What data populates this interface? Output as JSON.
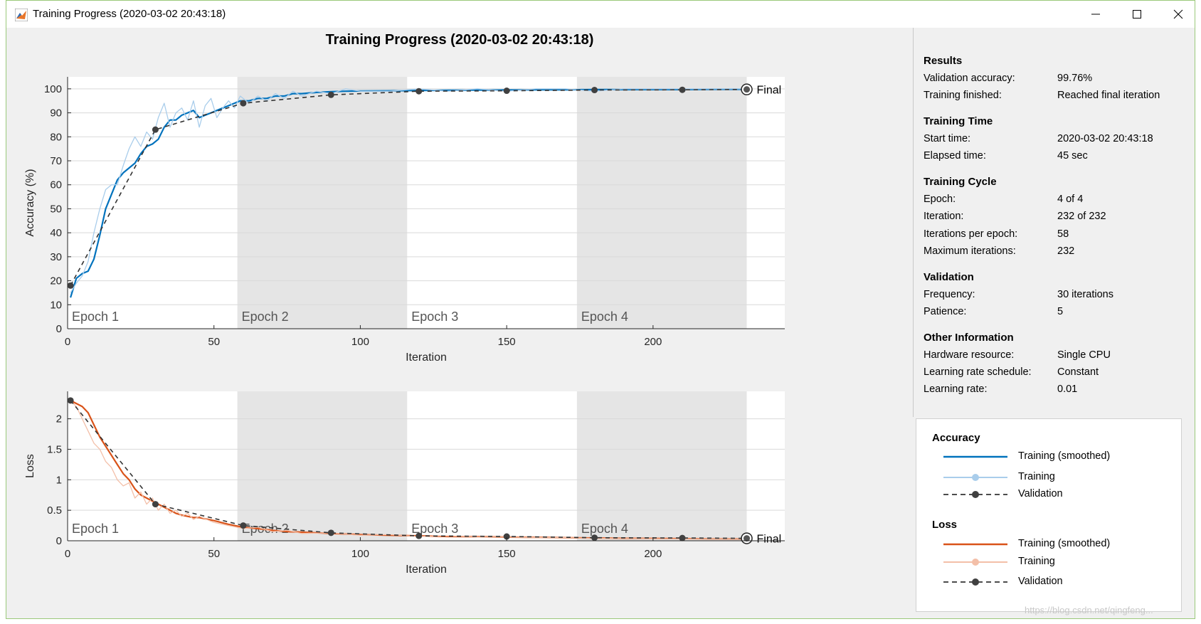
{
  "window": {
    "title": "Training Progress (2020-03-02 20:43:18)"
  },
  "plot": {
    "title": "Training Progress (2020-03-02 20:43:18)",
    "epoch_labels": [
      "Epoch 1",
      "Epoch 2",
      "Epoch 3",
      "Epoch 4"
    ],
    "final_label": "Final"
  },
  "colors": {
    "accuracy_smoothed": "#0072bd",
    "accuracy_raw": "#a9cdeb",
    "loss_smoothed": "#d95319",
    "loss_raw": "#f3bfa8",
    "validation": "#333333",
    "epoch_shade": "#e5e5e5"
  },
  "chart_data": [
    {
      "type": "line",
      "xlabel": "Iteration",
      "ylabel": "Accuracy (%)",
      "xlim": [
        0,
        245
      ],
      "ylim": [
        0,
        105
      ],
      "xticks": [
        0,
        50,
        100,
        150,
        200
      ],
      "yticks": [
        0,
        10,
        20,
        30,
        40,
        50,
        60,
        70,
        80,
        90,
        100
      ],
      "grid": true,
      "epoch_boundaries": [
        0,
        58,
        116,
        174,
        232
      ],
      "series": [
        {
          "name": "Training (smoothed)",
          "style": "solid",
          "x": [
            1,
            3,
            5,
            7,
            9,
            11,
            13,
            15,
            17,
            19,
            21,
            23,
            25,
            27,
            29,
            31,
            33,
            35,
            37,
            39,
            41,
            43,
            45,
            47,
            49,
            51,
            53,
            55,
            57,
            59,
            62,
            65,
            68,
            71,
            74,
            77,
            80,
            85,
            90,
            95,
            100,
            110,
            120,
            130,
            140,
            150,
            160,
            170,
            180,
            190,
            200,
            210,
            220,
            232
          ],
          "y": [
            13,
            21,
            23,
            24,
            29,
            39,
            50,
            56,
            62,
            65,
            67,
            69,
            73,
            76,
            77,
            79,
            84,
            87,
            87,
            89,
            90,
            91,
            88,
            89,
            90,
            91,
            92,
            93,
            94,
            95,
            95,
            96,
            96,
            97,
            97,
            98,
            98,
            98.5,
            98.8,
            99,
            99.1,
            99.2,
            99.3,
            99.4,
            99.5,
            99.5,
            99.6,
            99.6,
            99.7,
            99.7,
            99.7,
            99.7,
            99.8,
            99.8
          ]
        },
        {
          "name": "Training",
          "style": "solid-thin",
          "x": [
            1,
            3,
            5,
            7,
            9,
            11,
            13,
            15,
            17,
            19,
            21,
            23,
            25,
            27,
            29,
            31,
            33,
            35,
            37,
            39,
            41,
            43,
            45,
            47,
            49,
            51,
            53,
            55,
            57,
            59,
            62,
            65,
            68,
            71,
            74,
            77,
            80,
            85,
            90,
            95,
            100,
            110,
            120,
            130,
            140,
            150,
            160,
            170,
            180,
            190,
            200,
            210,
            220,
            232
          ],
          "y": [
            15,
            19,
            22,
            28,
            40,
            50,
            58,
            60,
            60,
            68,
            75,
            80,
            76,
            82,
            79,
            88,
            94,
            84,
            90,
            92,
            87,
            95,
            84,
            93,
            96,
            88,
            92,
            95,
            92,
            97,
            94,
            97,
            95,
            98,
            96,
            99,
            97,
            99,
            98,
            100,
            99,
            99,
            100,
            99,
            100,
            99,
            100,
            100,
            99,
            100,
            100,
            100,
            100,
            100
          ]
        },
        {
          "name": "Validation",
          "style": "dashed",
          "x": [
            1,
            30,
            60,
            90,
            120,
            150,
            180,
            210,
            232
          ],
          "y": [
            18,
            83,
            94,
            97.5,
            99,
            99.2,
            99.5,
            99.6,
            99.76
          ]
        }
      ]
    },
    {
      "type": "line",
      "xlabel": "Iteration",
      "ylabel": "Loss",
      "xlim": [
        0,
        245
      ],
      "ylim": [
        0,
        2.45
      ],
      "xticks": [
        0,
        50,
        100,
        150,
        200
      ],
      "yticks": [
        0,
        0.5,
        1,
        1.5,
        2
      ],
      "grid": true,
      "epoch_boundaries": [
        0,
        58,
        116,
        174,
        232
      ],
      "series": [
        {
          "name": "Training (smoothed)",
          "style": "solid",
          "x": [
            1,
            3,
            5,
            7,
            9,
            11,
            13,
            15,
            17,
            19,
            21,
            23,
            25,
            27,
            29,
            31,
            33,
            35,
            37,
            39,
            41,
            43,
            45,
            50,
            55,
            60,
            65,
            70,
            75,
            80,
            90,
            100,
            110,
            120,
            130,
            140,
            150,
            160,
            170,
            180,
            190,
            200,
            210,
            220,
            232
          ],
          "y": [
            2.3,
            2.25,
            2.2,
            2.1,
            1.9,
            1.7,
            1.55,
            1.4,
            1.25,
            1.1,
            1.0,
            0.85,
            0.75,
            0.7,
            0.65,
            0.6,
            0.55,
            0.5,
            0.45,
            0.42,
            0.4,
            0.38,
            0.38,
            0.33,
            0.27,
            0.22,
            0.2,
            0.17,
            0.15,
            0.14,
            0.12,
            0.1,
            0.09,
            0.08,
            0.07,
            0.065,
            0.06,
            0.055,
            0.05,
            0.045,
            0.04,
            0.038,
            0.035,
            0.032,
            0.03
          ]
        },
        {
          "name": "Training",
          "style": "solid-thin",
          "x": [
            1,
            3,
            5,
            7,
            9,
            11,
            13,
            15,
            17,
            19,
            21,
            23,
            25,
            27,
            29,
            31,
            33,
            35,
            37,
            39,
            41,
            43,
            45,
            50,
            55,
            60,
            65,
            70,
            75,
            80,
            90,
            100,
            110,
            120,
            130,
            140,
            150,
            160,
            170,
            180,
            190,
            200,
            210,
            220,
            232
          ],
          "y": [
            2.3,
            2.2,
            2.0,
            1.8,
            1.6,
            1.5,
            1.3,
            1.2,
            1.0,
            0.9,
            0.95,
            0.7,
            0.8,
            0.6,
            0.7,
            0.5,
            0.6,
            0.45,
            0.5,
            0.4,
            0.45,
            0.35,
            0.4,
            0.3,
            0.25,
            0.2,
            0.22,
            0.15,
            0.17,
            0.12,
            0.13,
            0.09,
            0.1,
            0.07,
            0.08,
            0.06,
            0.06,
            0.05,
            0.05,
            0.04,
            0.04,
            0.035,
            0.03,
            0.03,
            0.03
          ]
        },
        {
          "name": "Validation",
          "style": "dashed",
          "x": [
            1,
            30,
            60,
            90,
            120,
            150,
            180,
            210,
            232
          ],
          "y": [
            2.3,
            0.6,
            0.25,
            0.13,
            0.08,
            0.07,
            0.05,
            0.045,
            0.04
          ]
        }
      ]
    }
  ],
  "results": {
    "title": "Results",
    "rows": [
      {
        "label": "Validation accuracy:",
        "value": "99.76%"
      },
      {
        "label": "Training finished:",
        "value": "Reached final iteration"
      }
    ]
  },
  "training_time": {
    "title": "Training Time",
    "rows": [
      {
        "label": "Start time:",
        "value": "2020-03-02 20:43:18"
      },
      {
        "label": "Elapsed time:",
        "value": "45 sec"
      }
    ]
  },
  "training_cycle": {
    "title": "Training Cycle",
    "rows": [
      {
        "label": "Epoch:",
        "value": "4 of 4"
      },
      {
        "label": "Iteration:",
        "value": "232 of 232"
      },
      {
        "label": "Iterations per epoch:",
        "value": "58"
      },
      {
        "label": "Maximum iterations:",
        "value": "232"
      }
    ]
  },
  "validation": {
    "title": "Validation",
    "rows": [
      {
        "label": "Frequency:",
        "value": "30 iterations"
      },
      {
        "label": "Patience:",
        "value": "5"
      }
    ]
  },
  "other": {
    "title": "Other Information",
    "rows": [
      {
        "label": "Hardware resource:",
        "value": "Single CPU"
      },
      {
        "label": "Learning rate schedule:",
        "value": "Constant"
      },
      {
        "label": "Learning rate:",
        "value": "0.01"
      }
    ]
  },
  "legend": {
    "accuracy_title": "Accuracy",
    "loss_title": "Loss",
    "smoothed": "Training (smoothed)",
    "training": "Training",
    "validation": "Validation"
  },
  "watermark": "https://blog.csdn.net/qingfeng..."
}
